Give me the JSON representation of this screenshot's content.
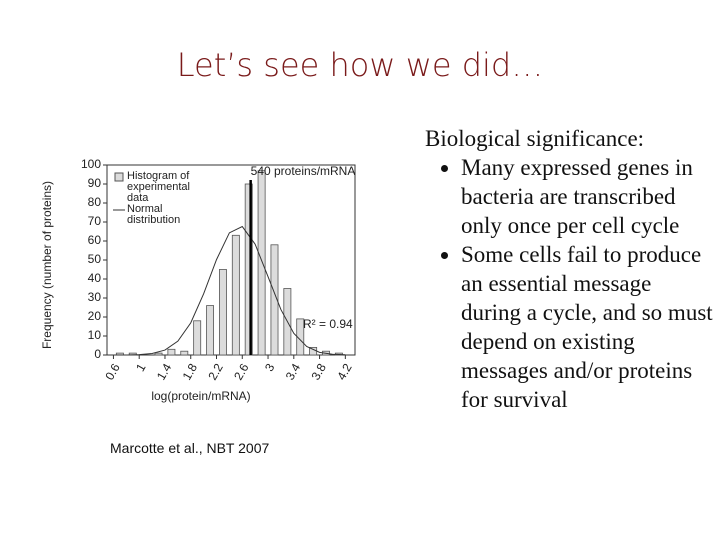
{
  "slide_title": "Let’s see how we did…",
  "caption": "Marcotte et al., NBT 2007",
  "text": {
    "heading": "Biological significance:",
    "bullets": [
      "Many expressed genes in bacteria are transcribed only once per cell cycle",
      "Some cells fail to produce an essential message during a cycle, and so must depend on existing messages and/or proteins for survival"
    ]
  },
  "chart_data": {
    "type": "histogram",
    "xlabel": "log(protein/mRNA)",
    "ylabel": "Frequency (number of proteins)",
    "bins": [
      0.6,
      0.8,
      1.0,
      1.2,
      1.4,
      1.6,
      1.8,
      2.0,
      2.2,
      2.4,
      2.6,
      2.8,
      3.0,
      3.2,
      3.4,
      3.6,
      3.8,
      4.0,
      4.2
    ],
    "series": [
      {
        "name": "Histogram of experimental data",
        "color": "#dcdcdc",
        "values": [
          1,
          1,
          0,
          1,
          3,
          2,
          18,
          26,
          45,
          63,
          90,
          97,
          58,
          35,
          19,
          4,
          2,
          1
        ]
      }
    ],
    "curve": {
      "name": "Normal distribution",
      "color": "#333333",
      "x": [
        0.6,
        0.8,
        1.0,
        1.2,
        1.4,
        1.6,
        1.8,
        2.0,
        2.2,
        2.4,
        2.6,
        2.8,
        3.0,
        3.2,
        3.4,
        3.6,
        3.8,
        4.0,
        4.2
      ],
      "values": [
        0,
        0,
        0.2,
        0.8,
        2.6,
        7.3,
        16.9,
        32.2,
        50.2,
        64.3,
        67.6,
        58.3,
        41.2,
        23.9,
        11.4,
        4.5,
        1.4,
        0.4,
        0.1
      ]
    },
    "reference_line": {
      "x": 2.73,
      "label": "540 proteins/mRNA"
    },
    "annotation": "R² = 0.94",
    "xlim": [
      0.5,
      4.35
    ],
    "ylim": [
      0,
      100
    ],
    "xticks": [
      0.6,
      1,
      1.4,
      1.8,
      2.2,
      2.6,
      3,
      3.4,
      3.8,
      4.2
    ],
    "yticks": [
      0,
      10,
      20,
      30,
      40,
      50,
      60,
      70,
      80,
      90,
      100
    ]
  }
}
